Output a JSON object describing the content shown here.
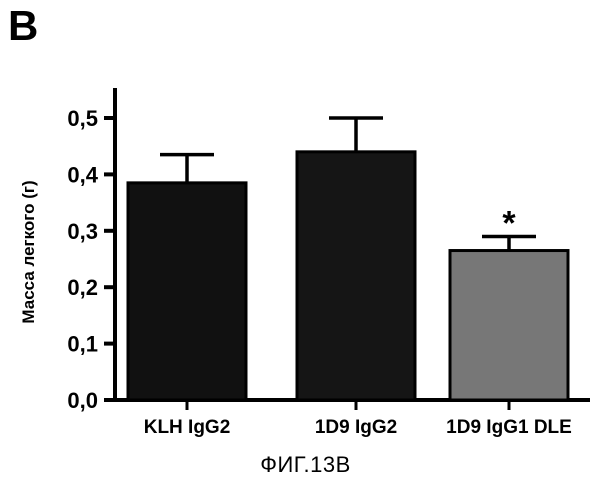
{
  "panel_label": "B",
  "figure_caption": "ФИГ.13B",
  "chart_data": {
    "type": "bar",
    "categories": [
      "KLH IgG2",
      "1D9 IgG2",
      "1D9 IgG1 DLE"
    ],
    "values": [
      0.385,
      0.44,
      0.265
    ],
    "errors": [
      0.05,
      0.06,
      0.025
    ],
    "annotations": [
      "",
      "",
      "*"
    ],
    "bar_colors": [
      "#111111",
      "#151515",
      "#777777"
    ],
    "ylabel": "Масса легкого (г)",
    "xlabel": "",
    "ylim": [
      0.0,
      0.5
    ],
    "yticks": [
      "0,0",
      "0,1",
      "0,2",
      "0,3",
      "0,4",
      "0,5"
    ],
    "ytick_values": [
      0.0,
      0.1,
      0.2,
      0.3,
      0.4,
      0.5
    ],
    "grid": false
  }
}
